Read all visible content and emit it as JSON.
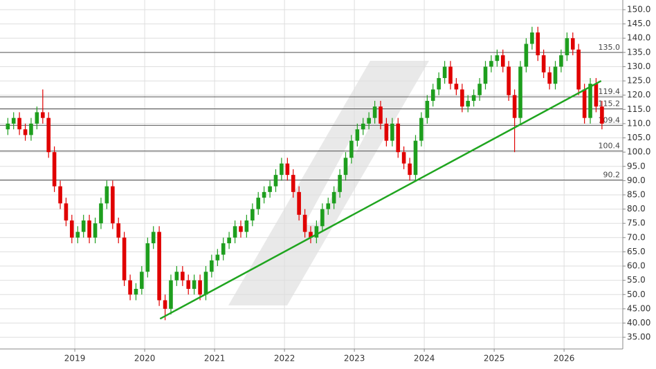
{
  "chart_data": {
    "type": "candlestick",
    "x": [
      2018.042,
      2018.125,
      2018.208,
      2018.292,
      2018.375,
      2018.458,
      2018.542,
      2018.625,
      2018.708,
      2018.792,
      2018.875,
      2018.958,
      2019.042,
      2019.125,
      2019.208,
      2019.292,
      2019.375,
      2019.458,
      2019.542,
      2019.625,
      2019.708,
      2019.792,
      2019.875,
      2019.958,
      2020.042,
      2020.125,
      2020.208,
      2020.292,
      2020.375,
      2020.458,
      2020.542,
      2020.625,
      2020.708,
      2020.792,
      2020.875,
      2020.958,
      2021.042,
      2021.125,
      2021.208,
      2021.292,
      2021.375,
      2021.458,
      2021.542,
      2021.625,
      2021.708,
      2021.792,
      2021.875,
      2021.958,
      2022.042,
      2022.125,
      2022.208,
      2022.292,
      2022.375,
      2022.458,
      2022.542,
      2022.625,
      2022.708,
      2022.792,
      2022.875,
      2022.958,
      2023.042,
      2023.125,
      2023.208,
      2023.292,
      2023.375,
      2023.458,
      2023.542,
      2023.625,
      2023.708,
      2023.792,
      2023.875,
      2023.958,
      2024.042,
      2024.125,
      2024.208,
      2024.292,
      2024.375,
      2024.458,
      2024.542,
      2024.625,
      2024.708,
      2024.792,
      2024.875,
      2024.958,
      2025.042,
      2025.125,
      2025.208,
      2025.292,
      2025.375,
      2025.458,
      2025.542,
      2025.625,
      2025.708,
      2025.792,
      2025.875,
      2025.958,
      2026.042,
      2026.125,
      2026.208,
      2026.292,
      2026.375,
      2026.458,
      2026.542
    ],
    "open": [
      108,
      110,
      112,
      108,
      106,
      110,
      114,
      112,
      100,
      88,
      82,
      76,
      70,
      72,
      76,
      70,
      75,
      82,
      88,
      75,
      70,
      55,
      50,
      52,
      58,
      68,
      72,
      48,
      45,
      55,
      58,
      55,
      52,
      55,
      50,
      58,
      62,
      64,
      68,
      70,
      74,
      72,
      76,
      80,
      84,
      86,
      88,
      92,
      96,
      92,
      86,
      78,
      72,
      70,
      74,
      80,
      82,
      86,
      92,
      98,
      104,
      108,
      110,
      112,
      116,
      110,
      104,
      110,
      100,
      96,
      92,
      104,
      112,
      118,
      122,
      126,
      130,
      124,
      122,
      116,
      118,
      120,
      124,
      130,
      132,
      134,
      130,
      120,
      112,
      130,
      138,
      142,
      134,
      128,
      124,
      130,
      134,
      140,
      136,
      122,
      112,
      124,
      116
    ],
    "high": [
      112,
      114,
      114,
      110,
      112,
      116,
      122,
      114,
      102,
      90,
      84,
      78,
      74,
      78,
      78,
      77,
      84,
      90,
      90,
      77,
      72,
      57,
      54,
      60,
      70,
      74,
      74,
      50,
      57,
      60,
      60,
      57,
      57,
      57,
      60,
      64,
      66,
      70,
      72,
      76,
      76,
      78,
      82,
      86,
      88,
      90,
      94,
      98,
      98,
      94,
      88,
      80,
      74,
      76,
      82,
      84,
      88,
      94,
      100,
      106,
      110,
      112,
      114,
      118,
      118,
      112,
      112,
      112,
      102,
      98,
      106,
      114,
      120,
      124,
      128,
      132,
      132,
      126,
      124,
      120,
      122,
      126,
      132,
      134,
      136,
      136,
      132,
      122,
      132,
      140,
      144,
      144,
      136,
      130,
      132,
      136,
      142,
      142,
      138,
      124,
      126,
      126,
      118
    ],
    "low": [
      106,
      108,
      106,
      104,
      104,
      108,
      110,
      98,
      86,
      80,
      74,
      68,
      68,
      70,
      68,
      68,
      73,
      80,
      73,
      68,
      53,
      48,
      48,
      50,
      56,
      66,
      46,
      41,
      43,
      53,
      53,
      50,
      50,
      48,
      48,
      56,
      60,
      62,
      66,
      68,
      70,
      70,
      74,
      78,
      82,
      84,
      86,
      90,
      90,
      84,
      76,
      70,
      68,
      68,
      72,
      78,
      80,
      84,
      90,
      96,
      102,
      106,
      108,
      110,
      108,
      102,
      102,
      98,
      94,
      90,
      90,
      102,
      110,
      116,
      120,
      124,
      122,
      120,
      114,
      114,
      116,
      118,
      122,
      128,
      130,
      128,
      118,
      100,
      110,
      128,
      136,
      132,
      126,
      122,
      122,
      128,
      132,
      134,
      120,
      110,
      110,
      114,
      108
    ],
    "close": [
      110,
      112,
      108,
      106,
      110,
      114,
      112,
      100,
      88,
      82,
      76,
      70,
      72,
      76,
      70,
      75,
      82,
      88,
      75,
      70,
      55,
      50,
      52,
      58,
      68,
      72,
      48,
      45,
      55,
      58,
      55,
      52,
      55,
      50,
      58,
      62,
      64,
      68,
      70,
      74,
      72,
      76,
      80,
      84,
      86,
      88,
      92,
      96,
      92,
      86,
      78,
      72,
      70,
      74,
      80,
      82,
      86,
      92,
      98,
      104,
      108,
      110,
      112,
      116,
      110,
      104,
      110,
      100,
      96,
      92,
      104,
      112,
      118,
      122,
      126,
      130,
      124,
      122,
      116,
      118,
      120,
      124,
      130,
      132,
      134,
      130,
      120,
      112,
      130,
      138,
      142,
      134,
      128,
      124,
      130,
      134,
      140,
      136,
      122,
      112,
      124,
      116,
      110
    ],
    "up_color": "#1e9e1e",
    "down_color": "#e00000",
    "xlim": [
      2017.93,
      2026.84
    ],
    "xticks": [
      2019,
      2020,
      2021,
      2022,
      2023,
      2024,
      2025,
      2026
    ],
    "ylim": [
      30.9,
      153.4
    ],
    "yticks": [
      {
        "value": 35,
        "label": "35.00"
      },
      {
        "value": 40,
        "label": "40.00"
      },
      {
        "value": 45,
        "label": "45.00"
      },
      {
        "value": 50,
        "label": "50.0"
      },
      {
        "value": 55,
        "label": "55.0"
      },
      {
        "value": 60,
        "label": "60.0"
      },
      {
        "value": 65,
        "label": "65.0"
      },
      {
        "value": 70,
        "label": "70.0"
      },
      {
        "value": 75,
        "label": "75.0"
      },
      {
        "value": 80,
        "label": "80.0"
      },
      {
        "value": 85,
        "label": "85.0"
      },
      {
        "value": 90,
        "label": "90.0"
      },
      {
        "value": 95,
        "label": "95.0"
      },
      {
        "value": 100,
        "label": "100.0"
      },
      {
        "value": 105,
        "label": "105.0"
      },
      {
        "value": 110,
        "label": "110.0"
      },
      {
        "value": 115,
        "label": "115.0"
      },
      {
        "value": 120,
        "label": "120.0"
      },
      {
        "value": 125,
        "label": "125.0"
      },
      {
        "value": 130,
        "label": "130.0"
      },
      {
        "value": 135,
        "label": "135.0"
      },
      {
        "value": 140,
        "label": "140.0"
      },
      {
        "value": 145,
        "label": "145.0"
      },
      {
        "value": 150,
        "label": "150.0"
      }
    ],
    "grid": true,
    "levels": [
      {
        "value": 135,
        "label": "135.0"
      },
      119.4,
      115.2,
      109.4,
      100.4,
      90.2
    ],
    "trendline": {
      "x": [
        2020.22,
        2026.53
      ],
      "y": [
        41.5,
        125
      ],
      "color": "#1fa51f"
    }
  }
}
